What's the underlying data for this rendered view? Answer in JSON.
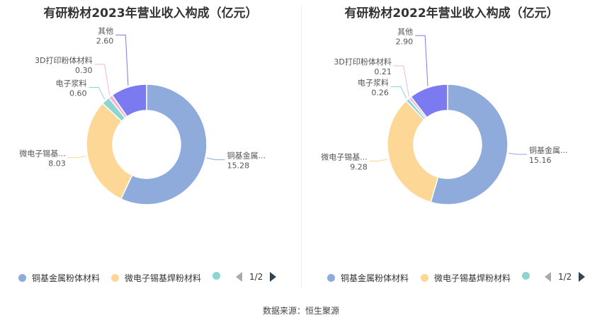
{
  "colors": [
    "#8eabdb",
    "#fdd795",
    "#8ed5d2",
    "#f3b8cd",
    "#7b7af0"
  ],
  "source": "数据来源：恒生聚源",
  "chart_data": [
    {
      "type": "pie",
      "title": "有研粉材2023年营业收入构成（亿元）",
      "categories": [
        "铜基金属粉体材料",
        "微电子锡基焊粉材料",
        "电子浆料",
        "3D打印粉体材料",
        "其他"
      ],
      "labels": [
        "铜基金属...",
        "微电子锡基...",
        "电子浆料",
        "3D打印粉体材料",
        "其他"
      ],
      "value_labels": [
        "15.28",
        "8.03",
        "0.60",
        "0.30",
        "2.60"
      ],
      "values": [
        15.28,
        8.03,
        0.6,
        0.3,
        2.6
      ],
      "legend": {
        "position": "bottom",
        "visible": [
          "铜基金属粉体材料",
          "微电子锡基焊粉材料",
          ""
        ],
        "page": "1/2"
      }
    },
    {
      "type": "pie",
      "title": "有研粉材2022年营业收入构成（亿元）",
      "categories": [
        "铜基金属粉体材料",
        "微电子锡基焊粉材料",
        "电子浆料",
        "3D打印粉体材料",
        "其他"
      ],
      "labels": [
        "铜基金属...",
        "微电子锡基...",
        "电子浆料",
        "3D打印粉体材料",
        "其他"
      ],
      "value_labels": [
        "15.16",
        "9.28",
        "0.26",
        "0.21",
        "2.90"
      ],
      "values": [
        15.16,
        9.28,
        0.26,
        0.21,
        2.9
      ],
      "legend": {
        "position": "bottom",
        "visible": [
          "铜基金属粉体材料",
          "微电子锡基焊粉材料",
          ""
        ],
        "page": "1/2"
      }
    }
  ]
}
